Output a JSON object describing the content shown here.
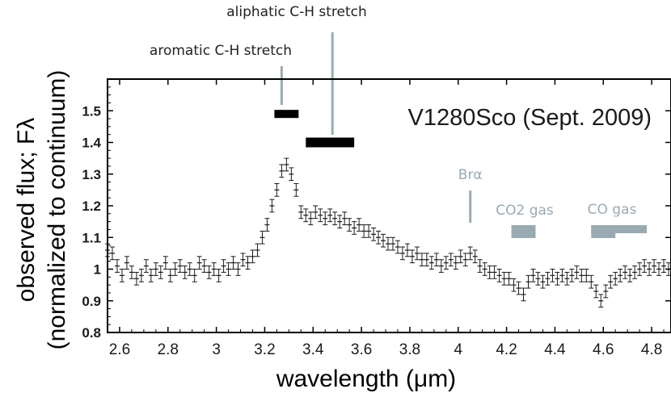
{
  "chart_data": {
    "type": "scatter",
    "title": "V1280Sco (Sept. 2009)",
    "xlabel": "wavelength (μm)",
    "ylabel_line1": "observed flux; Fλ",
    "ylabel_line2": "(normalized to continuum)",
    "xlim": [
      2.55,
      4.88
    ],
    "ylim": [
      0.8,
      1.6
    ],
    "xticks": [
      2.6,
      2.8,
      3,
      3.2,
      3.4,
      3.6,
      3.8,
      4,
      4.2,
      4.4,
      4.6,
      4.8
    ],
    "xtick_labels": [
      "2.6",
      "2.8",
      "3",
      "3.2",
      "3.4",
      "3.6",
      "3.8",
      "4",
      "4.2",
      "4.4",
      "4.6",
      "4.8"
    ],
    "yticks": [
      0.8,
      0.9,
      1.0,
      1.1,
      1.2,
      1.3,
      1.4,
      1.5
    ],
    "ytick_labels": [
      "0.8",
      "0.9",
      "1",
      "1.1",
      "1.2",
      "1.3",
      "1.4",
      "1.5"
    ],
    "series": [
      {
        "name": "observed flux",
        "error": 0.02,
        "x": [
          2.55,
          2.57,
          2.59,
          2.61,
          2.63,
          2.65,
          2.67,
          2.69,
          2.71,
          2.73,
          2.75,
          2.77,
          2.79,
          2.81,
          2.83,
          2.85,
          2.87,
          2.89,
          2.91,
          2.93,
          2.95,
          2.97,
          2.99,
          3.01,
          3.03,
          3.05,
          3.07,
          3.09,
          3.11,
          3.13,
          3.15,
          3.17,
          3.19,
          3.21,
          3.23,
          3.25,
          3.27,
          3.29,
          3.31,
          3.33,
          3.35,
          3.37,
          3.39,
          3.41,
          3.43,
          3.45,
          3.47,
          3.49,
          3.51,
          3.53,
          3.55,
          3.57,
          3.59,
          3.61,
          3.63,
          3.65,
          3.67,
          3.69,
          3.71,
          3.73,
          3.75,
          3.77,
          3.79,
          3.81,
          3.83,
          3.85,
          3.87,
          3.89,
          3.91,
          3.93,
          3.95,
          3.97,
          3.99,
          4.01,
          4.03,
          4.05,
          4.07,
          4.09,
          4.11,
          4.13,
          4.15,
          4.17,
          4.19,
          4.21,
          4.23,
          4.25,
          4.27,
          4.29,
          4.31,
          4.33,
          4.35,
          4.37,
          4.39,
          4.41,
          4.43,
          4.45,
          4.47,
          4.49,
          4.51,
          4.53,
          4.55,
          4.57,
          4.59,
          4.61,
          4.63,
          4.65,
          4.67,
          4.69,
          4.71,
          4.73,
          4.75,
          4.77,
          4.79,
          4.81,
          4.83,
          4.85,
          4.87
        ],
        "y": [
          1.06,
          1.05,
          1.01,
          0.98,
          1.02,
          0.99,
          0.97,
          0.98,
          1.01,
          0.98,
          1.0,
          0.99,
          1.02,
          0.98,
          1.0,
          1.01,
          0.99,
          1.0,
          0.98,
          1.02,
          1.01,
          0.99,
          1.0,
          0.98,
          1.01,
          1.0,
          1.02,
          1.0,
          1.03,
          1.02,
          1.04,
          1.06,
          1.1,
          1.14,
          1.2,
          1.25,
          1.31,
          1.33,
          1.3,
          1.25,
          1.18,
          1.17,
          1.16,
          1.18,
          1.17,
          1.16,
          1.17,
          1.16,
          1.15,
          1.16,
          1.14,
          1.13,
          1.14,
          1.12,
          1.12,
          1.11,
          1.1,
          1.09,
          1.08,
          1.08,
          1.07,
          1.05,
          1.06,
          1.04,
          1.05,
          1.03,
          1.03,
          1.02,
          1.03,
          1.01,
          1.02,
          1.03,
          1.02,
          1.04,
          1.03,
          1.05,
          1.04,
          1.01,
          1.0,
          0.99,
          0.99,
          0.98,
          0.97,
          0.97,
          0.95,
          0.94,
          0.92,
          0.96,
          0.98,
          0.97,
          0.96,
          0.97,
          0.98,
          0.97,
          0.98,
          0.97,
          0.98,
          0.99,
          0.98,
          0.98,
          0.96,
          0.93,
          0.9,
          0.93,
          0.96,
          0.97,
          0.98,
          0.99,
          0.98,
          0.99,
          1.0,
          1.01,
          1.0,
          1.01,
          1.0,
          1.01,
          1.0
        ]
      }
    ],
    "annotations": [
      {
        "text": "aromatic C-H stretch",
        "x": 3.27,
        "y_top": 1.72,
        "y_bottom": 1.52,
        "bar": [
          3.24,
          3.34
        ],
        "bar_y": 1.49
      },
      {
        "text": "aliphatic C-H stretch",
        "x": 3.48,
        "y_top": 1.8,
        "y_bottom": 1.43,
        "bar": [
          3.37,
          3.57
        ],
        "bar_y": 1.4
      },
      {
        "text": "Brα",
        "x": 4.05,
        "y_top": 1.25,
        "y_bottom": 1.15
      },
      {
        "text": "CO2 gas",
        "bar": [
          4.22,
          4.32
        ],
        "bar_y": 1.12
      },
      {
        "text": "CO gas",
        "bar": [
          4.55,
          4.78
        ],
        "bar_y": 1.12,
        "bar2": [
          4.55,
          4.65
        ],
        "bar2_y": 1.105
      }
    ],
    "colors": {
      "data": "#1a1a1a",
      "annotation_gray": "#9aaab2",
      "bar_black": "#000000"
    }
  }
}
